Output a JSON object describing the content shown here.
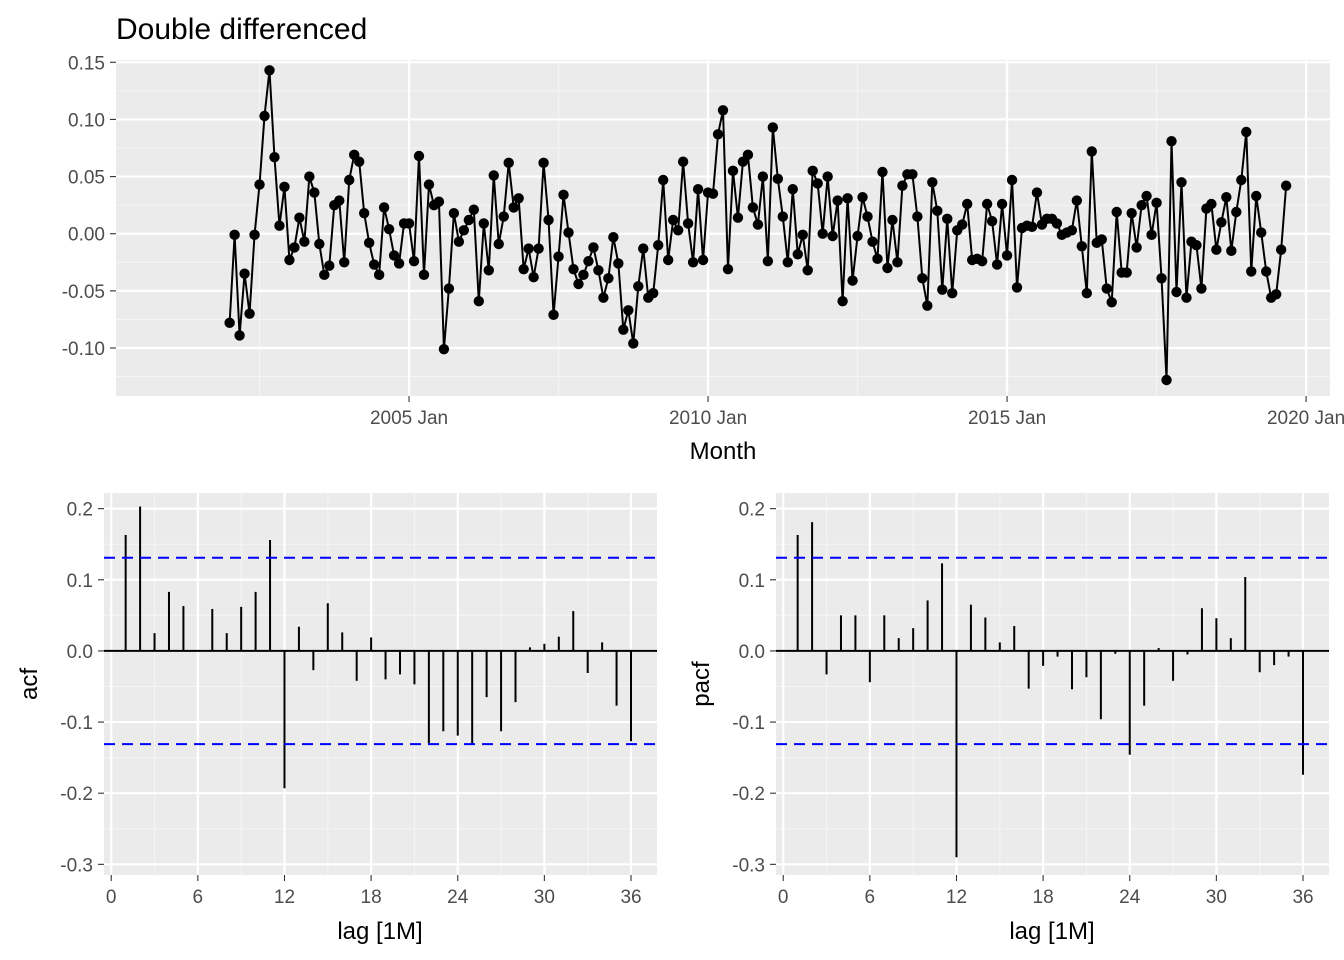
{
  "chart_data": [
    {
      "type": "line",
      "title": "Double differenced",
      "xlabel": "Month",
      "ylabel": "",
      "x_tick_labels": [
        "2005 Jan",
        "2010 Jan",
        "2015 Jan",
        "2020 Jan"
      ],
      "x_tick_years": [
        2005,
        2010,
        2015,
        2020
      ],
      "xlim": [
        2000.1,
        2020.4
      ],
      "ylim": [
        -0.142,
        0.152
      ],
      "y_ticks": [
        -0.1,
        -0.05,
        0.0,
        0.05,
        0.1,
        0.15
      ],
      "y_tick_labels": [
        "-0.10",
        "-0.05",
        "0.00",
        "0.05",
        "0.10",
        "0.15"
      ],
      "markers": true,
      "start": "2002 Jan",
      "frequency": "monthly",
      "values": [
        -0.078,
        -0.001,
        -0.089,
        -0.035,
        -0.07,
        -0.001,
        0.043,
        0.103,
        0.143,
        0.067,
        0.007,
        0.041,
        -0.023,
        -0.012,
        0.014,
        -0.007,
        0.05,
        0.036,
        -0.009,
        -0.036,
        -0.028,
        0.025,
        0.029,
        -0.025,
        0.047,
        0.069,
        0.063,
        0.018,
        -0.008,
        -0.027,
        -0.036,
        0.023,
        0.004,
        -0.019,
        -0.026,
        0.009,
        0.009,
        -0.024,
        0.068,
        -0.036,
        0.043,
        0.025,
        0.028,
        -0.101,
        -0.048,
        0.018,
        -0.007,
        0.003,
        0.012,
        0.021,
        -0.059,
        0.009,
        -0.032,
        0.051,
        -0.009,
        0.015,
        0.062,
        0.023,
        0.031,
        -0.031,
        -0.013,
        -0.038,
        -0.013,
        0.062,
        0.012,
        -0.071,
        -0.02,
        0.034,
        0.001,
        -0.031,
        -0.044,
        -0.036,
        -0.024,
        -0.012,
        -0.032,
        -0.056,
        -0.039,
        -0.003,
        -0.026,
        -0.084,
        -0.067,
        -0.096,
        -0.046,
        -0.013,
        -0.056,
        -0.052,
        -0.01,
        0.047,
        -0.023,
        0.012,
        0.003,
        0.063,
        0.009,
        -0.025,
        0.039,
        -0.023,
        0.036,
        0.035,
        0.087,
        0.108,
        -0.031,
        0.055,
        0.014,
        0.063,
        0.069,
        0.023,
        0.008,
        0.05,
        -0.024,
        0.093,
        0.048,
        0.015,
        -0.025,
        0.039,
        -0.018,
        -0.001,
        -0.032,
        0.055,
        0.044,
        0.0,
        0.05,
        -0.002,
        0.029,
        -0.059,
        0.031,
        -0.041,
        -0.002,
        0.032,
        0.015,
        -0.007,
        -0.022,
        0.054,
        -0.03,
        0.012,
        -0.025,
        0.042,
        0.052,
        0.052,
        0.015,
        -0.039,
        -0.063,
        0.045,
        0.02,
        -0.049,
        0.013,
        -0.052,
        0.003,
        0.008,
        0.026,
        -0.023,
        -0.022,
        -0.024,
        0.026,
        0.011,
        -0.027,
        0.026,
        -0.019,
        0.047,
        -0.047,
        0.005,
        0.007,
        0.006,
        0.036,
        0.008,
        0.013,
        0.013,
        0.009,
        -0.001,
        0.001,
        0.003,
        0.029,
        -0.011,
        -0.052,
        0.072,
        -0.008,
        -0.005,
        -0.048,
        -0.06,
        0.019,
        -0.034,
        -0.034,
        0.018,
        -0.012,
        0.025,
        0.033,
        -0.001,
        0.027,
        -0.039,
        -0.128,
        0.081,
        -0.051,
        0.045,
        -0.056,
        -0.007,
        -0.01,
        -0.048,
        0.022,
        0.026,
        -0.014,
        0.01,
        0.032,
        -0.015,
        0.019,
        0.047,
        0.089,
        -0.033,
        0.033,
        0.001,
        -0.033,
        -0.056,
        -0.053,
        -0.014,
        0.042
      ]
    },
    {
      "type": "bar",
      "title": "",
      "xlabel": "lag [1M]",
      "ylabel": "acf",
      "x": [
        1,
        2,
        3,
        4,
        5,
        6,
        7,
        8,
        9,
        10,
        11,
        12,
        13,
        14,
        15,
        16,
        17,
        18,
        19,
        20,
        21,
        22,
        23,
        24,
        25,
        26,
        27,
        28,
        29,
        30,
        31,
        32,
        33,
        34,
        35,
        36
      ],
      "values": [
        0.163,
        0.203,
        0.025,
        0.083,
        0.063,
        0.001,
        0.059,
        0.025,
        0.062,
        0.083,
        0.156,
        -0.193,
        0.034,
        -0.027,
        0.067,
        0.026,
        -0.042,
        0.019,
        -0.04,
        -0.033,
        -0.047,
        -0.13,
        -0.113,
        -0.119,
        -0.131,
        -0.065,
        -0.113,
        -0.072,
        0.005,
        0.01,
        0.02,
        0.056,
        -0.031,
        0.012,
        -0.077,
        -0.127
      ],
      "ci": [
        -0.131,
        0.131
      ],
      "xlim": [
        -0.5,
        37.8
      ],
      "ylim": [
        -0.315,
        0.222
      ],
      "x_ticks": [
        0,
        6,
        12,
        18,
        24,
        30,
        36
      ],
      "x_tick_labels": [
        "0",
        "6",
        "12",
        "18",
        "24",
        "30",
        "36"
      ],
      "y_ticks": [
        -0.3,
        -0.2,
        -0.1,
        0.0,
        0.1,
        0.2
      ],
      "y_tick_labels": [
        "-0.3",
        "-0.2",
        "-0.1",
        "0.0",
        "0.1",
        "0.2"
      ]
    },
    {
      "type": "bar",
      "title": "",
      "xlabel": "lag [1M]",
      "ylabel": "pacf",
      "x": [
        1,
        2,
        3,
        4,
        5,
        6,
        7,
        8,
        9,
        10,
        11,
        12,
        13,
        14,
        15,
        16,
        17,
        18,
        19,
        20,
        21,
        22,
        23,
        24,
        25,
        26,
        27,
        28,
        29,
        30,
        31,
        32,
        33,
        34,
        35,
        36
      ],
      "values": [
        0.163,
        0.181,
        -0.033,
        0.05,
        0.05,
        -0.044,
        0.05,
        0.018,
        0.032,
        0.071,
        0.123,
        -0.29,
        0.065,
        0.047,
        0.012,
        0.035,
        -0.053,
        -0.021,
        -0.008,
        -0.054,
        -0.037,
        -0.096,
        -0.004,
        -0.146,
        -0.077,
        0.004,
        -0.042,
        -0.005,
        0.06,
        0.046,
        0.018,
        0.104,
        -0.03,
        -0.02,
        -0.008,
        -0.174
      ],
      "ci": [
        -0.131,
        0.131
      ],
      "xlim": [
        -0.5,
        37.8
      ],
      "ylim": [
        -0.315,
        0.222
      ],
      "x_ticks": [
        0,
        6,
        12,
        18,
        24,
        30,
        36
      ],
      "x_tick_labels": [
        "0",
        "6",
        "12",
        "18",
        "24",
        "30",
        "36"
      ],
      "y_ticks": [
        -0.3,
        -0.2,
        -0.1,
        0.0,
        0.1,
        0.2
      ],
      "y_tick_labels": [
        "-0.3",
        "-0.2",
        "-0.1",
        "0.0",
        "0.1",
        "0.2"
      ]
    }
  ],
  "colors": {
    "panel_background": "#ebebeb",
    "grid_major": "#ffffff",
    "grid_minor": "#f5f5f5",
    "series_line": "#000000",
    "ci_line": "#0000ff",
    "tick_text": "#4d4d4d"
  }
}
